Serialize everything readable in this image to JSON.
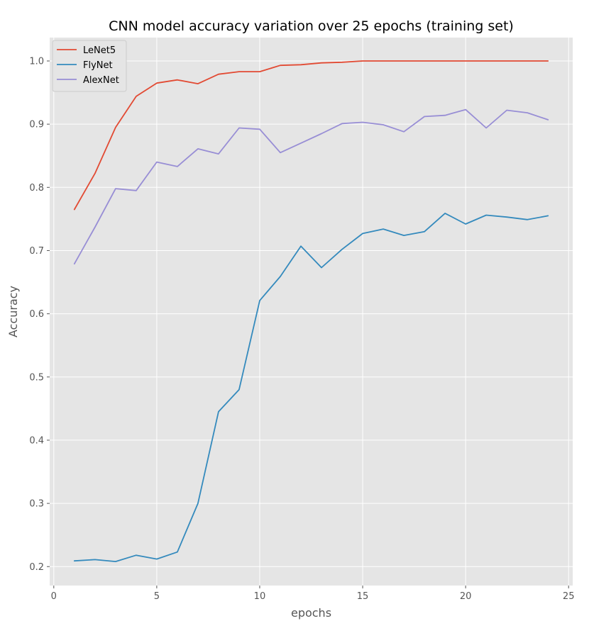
{
  "chart_data": {
    "type": "line",
    "title": "CNN model accuracy variation over 25 epochs (training set)",
    "xlabel": "epochs",
    "ylabel": "Accuracy",
    "xlim": [
      -0.2,
      25.2
    ],
    "ylim": [
      0.17,
      1.037
    ],
    "xticks": [
      0,
      5,
      10,
      15,
      20,
      25
    ],
    "yticks": [
      0.2,
      0.3,
      0.4,
      0.5,
      0.6,
      0.7,
      0.8,
      0.9,
      1.0
    ],
    "xtick_labels": [
      "0",
      "5",
      "10",
      "15",
      "20",
      "25"
    ],
    "ytick_labels": [
      "0.2",
      "0.3",
      "0.4",
      "0.5",
      "0.6",
      "0.7",
      "0.8",
      "0.9",
      "1.0"
    ],
    "grid": true,
    "legend_position": "top-left",
    "x": [
      1,
      2,
      3,
      4,
      5,
      6,
      7,
      8,
      9,
      10,
      11,
      12,
      13,
      14,
      15,
      16,
      17,
      18,
      19,
      20,
      21,
      22,
      23,
      24
    ],
    "series": [
      {
        "name": "LeNet5",
        "color": "#e24a33",
        "values": [
          0.765,
          0.822,
          0.895,
          0.944,
          0.965,
          0.97,
          0.964,
          0.979,
          0.983,
          0.983,
          0.993,
          0.994,
          0.997,
          0.998,
          1.0,
          1.0,
          1.0,
          1.0,
          1.0,
          1.0,
          1.0,
          1.0,
          1.0,
          1.0
        ]
      },
      {
        "name": "FlyNet",
        "color": "#348abd",
        "values": [
          0.209,
          0.211,
          0.208,
          0.218,
          0.212,
          0.223,
          0.3,
          0.445,
          0.48,
          0.621,
          0.659,
          0.707,
          0.673,
          0.702,
          0.727,
          0.734,
          0.724,
          0.73,
          0.759,
          0.742,
          0.756,
          0.753,
          0.749,
          0.755
        ]
      },
      {
        "name": "AlexNet",
        "color": "#988ed5",
        "values": [
          0.679,
          0.737,
          0.798,
          0.795,
          0.84,
          0.833,
          0.861,
          0.853,
          0.894,
          0.892,
          0.855,
          0.87,
          0.885,
          0.901,
          0.903,
          0.899,
          0.888,
          0.912,
          0.914,
          0.923,
          0.894,
          0.922,
          0.918,
          0.907
        ]
      }
    ]
  },
  "colors": {
    "plot_background": "#e5e5e5",
    "grid": "#ffffff",
    "tick_text": "#555555"
  }
}
